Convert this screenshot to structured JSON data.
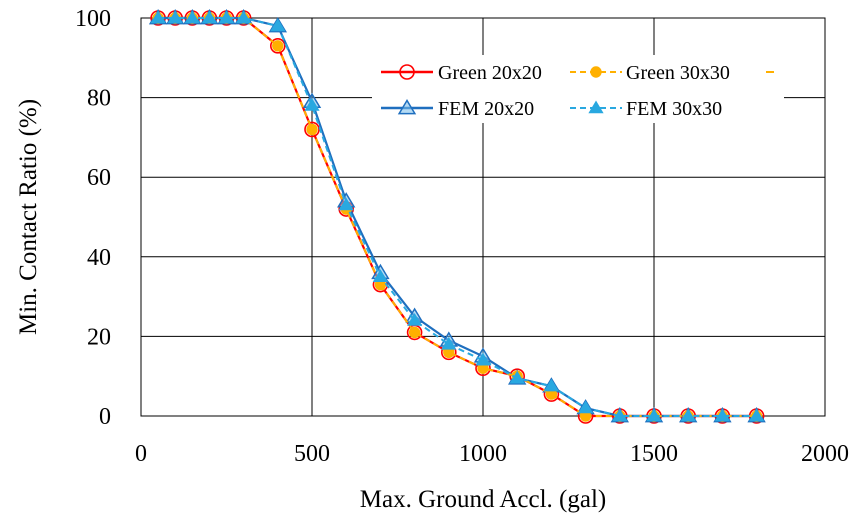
{
  "chart_data": {
    "type": "line",
    "title": "",
    "xlabel": "Max. Ground Accl. (gal)",
    "ylabel": "Min. Contact Ratio (%)",
    "xlim": [
      0,
      2000
    ],
    "ylim": [
      0,
      100
    ],
    "x_ticks": [
      "0",
      "500",
      "1000",
      "1500",
      "2000"
    ],
    "y_ticks": [
      "0",
      "20",
      "40",
      "60",
      "80",
      "100"
    ],
    "grid": true,
    "legend_position": "top-right",
    "series": [
      {
        "name": "Green 20x20",
        "color": "#ff0000",
        "marker": "circle-open",
        "line": "solid",
        "x": [
          50,
          100,
          150,
          200,
          250,
          300,
          400,
          500,
          600,
          700,
          800,
          900,
          1000,
          1100,
          1200,
          1300,
          1400,
          1500,
          1600,
          1700,
          1800
        ],
        "y": [
          100,
          100,
          100,
          100,
          100,
          100,
          93,
          72,
          52,
          33,
          21,
          16,
          12,
          10,
          5.5,
          0,
          0,
          0,
          0,
          0,
          0
        ]
      },
      {
        "name": "Green 30x30",
        "color": "#ffb000",
        "marker": "circle-filled",
        "line": "dashed",
        "x": [
          50,
          100,
          150,
          200,
          250,
          300,
          400,
          500,
          600,
          700,
          800,
          900,
          1000,
          1100,
          1200,
          1300,
          1400,
          1500,
          1600,
          1700,
          1800
        ],
        "y": [
          100,
          100,
          100,
          100,
          100,
          100,
          93,
          72,
          52,
          33,
          21,
          16,
          12,
          10,
          5.5,
          0,
          0,
          0,
          0,
          0,
          0
        ]
      },
      {
        "name": "FEM 20x20",
        "color": "#1f6fbf",
        "marker": "triangle-open",
        "line": "solid",
        "x": [
          50,
          100,
          150,
          200,
          250,
          300,
          400,
          500,
          600,
          700,
          800,
          900,
          1000,
          1100,
          1200,
          1300,
          1400,
          1500,
          1600,
          1700,
          1800
        ],
        "y": [
          100,
          100,
          100,
          100,
          100,
          100,
          98,
          79,
          54,
          36,
          25,
          19,
          15,
          9.5,
          7.5,
          2,
          0,
          0,
          0,
          0,
          0
        ]
      },
      {
        "name": "FEM 30x30",
        "color": "#29a8e0",
        "marker": "triangle-filled",
        "line": "dashed",
        "x": [
          50,
          100,
          150,
          200,
          250,
          300,
          400,
          500,
          600,
          700,
          800,
          900,
          1000,
          1100,
          1200,
          1300,
          1400,
          1500,
          1600,
          1700,
          1800
        ],
        "y": [
          100,
          100,
          100,
          100,
          100,
          100,
          98,
          78,
          53,
          35,
          24,
          18,
          14,
          9.5,
          7.5,
          2,
          0,
          0,
          0,
          0,
          0
        ]
      }
    ]
  }
}
